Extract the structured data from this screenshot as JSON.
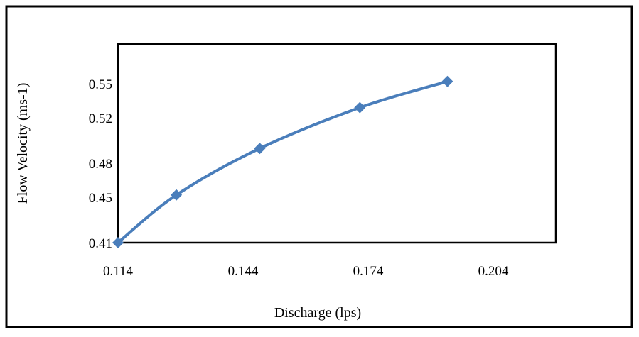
{
  "chart_data": {
    "type": "line",
    "title": "",
    "xlabel": "Discharge (lps)",
    "ylabel": "Flow Velocity (ms-1)",
    "xlim": [
      0.114,
      0.219
    ],
    "ylim": [
      0.41,
      0.585
    ],
    "x_ticks": [
      "0.114",
      "0.144",
      "0.174",
      "0.204"
    ],
    "y_ticks": [
      "0.41",
      "0.45",
      "0.48",
      "0.52",
      "0.55"
    ],
    "x_tick_values": [
      0.114,
      0.144,
      0.174,
      0.204
    ],
    "y_tick_values": [
      0.41,
      0.45,
      0.48,
      0.52,
      0.55
    ],
    "grid": false,
    "legend": "none",
    "series": [
      {
        "color": "#4a7ebb",
        "marker": "diamond",
        "smooth": true,
        "x": [
          0.114,
          0.128,
          0.148,
          0.172,
          0.193
        ],
        "y": [
          0.41,
          0.452,
          0.493,
          0.529,
          0.552
        ]
      }
    ]
  }
}
